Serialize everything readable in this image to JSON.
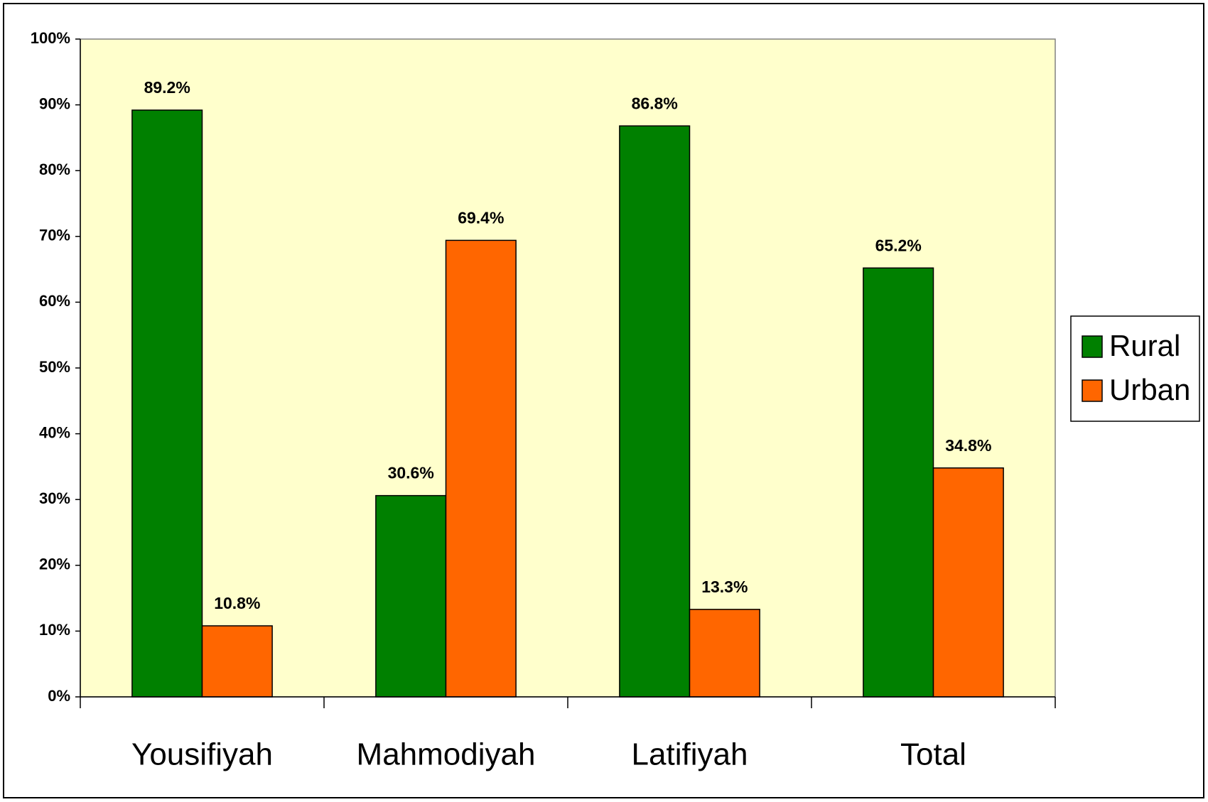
{
  "chart_data": {
    "type": "bar",
    "categories": [
      "Yousifiyah",
      "Mahmodiyah",
      "Latifiyah",
      "Total"
    ],
    "series": [
      {
        "name": "Rural",
        "color": "#008000",
        "values": [
          89.2,
          30.6,
          86.8,
          65.2
        ],
        "value_labels": [
          "89.2%",
          "30.6%",
          "86.8%",
          "65.2%"
        ]
      },
      {
        "name": "Urban",
        "color": "#ff6600",
        "values": [
          10.8,
          69.4,
          13.3,
          34.8
        ],
        "value_labels": [
          "10.8%",
          "69.4%",
          "13.3%",
          "34.8%"
        ]
      }
    ],
    "ylim": [
      0,
      100
    ],
    "yticks": [
      {
        "value": 0,
        "label": "0%"
      },
      {
        "value": 10,
        "label": "10%"
      },
      {
        "value": 20,
        "label": "20%"
      },
      {
        "value": 30,
        "label": "30%"
      },
      {
        "value": 40,
        "label": "40%"
      },
      {
        "value": 50,
        "label": "50%"
      },
      {
        "value": 60,
        "label": "60%"
      },
      {
        "value": 70,
        "label": "70%"
      },
      {
        "value": 80,
        "label": "80%"
      },
      {
        "value": 90,
        "label": "90%"
      },
      {
        "value": 100,
        "label": "100%"
      }
    ],
    "plot_background": "#ffffcc",
    "legend": "right"
  }
}
